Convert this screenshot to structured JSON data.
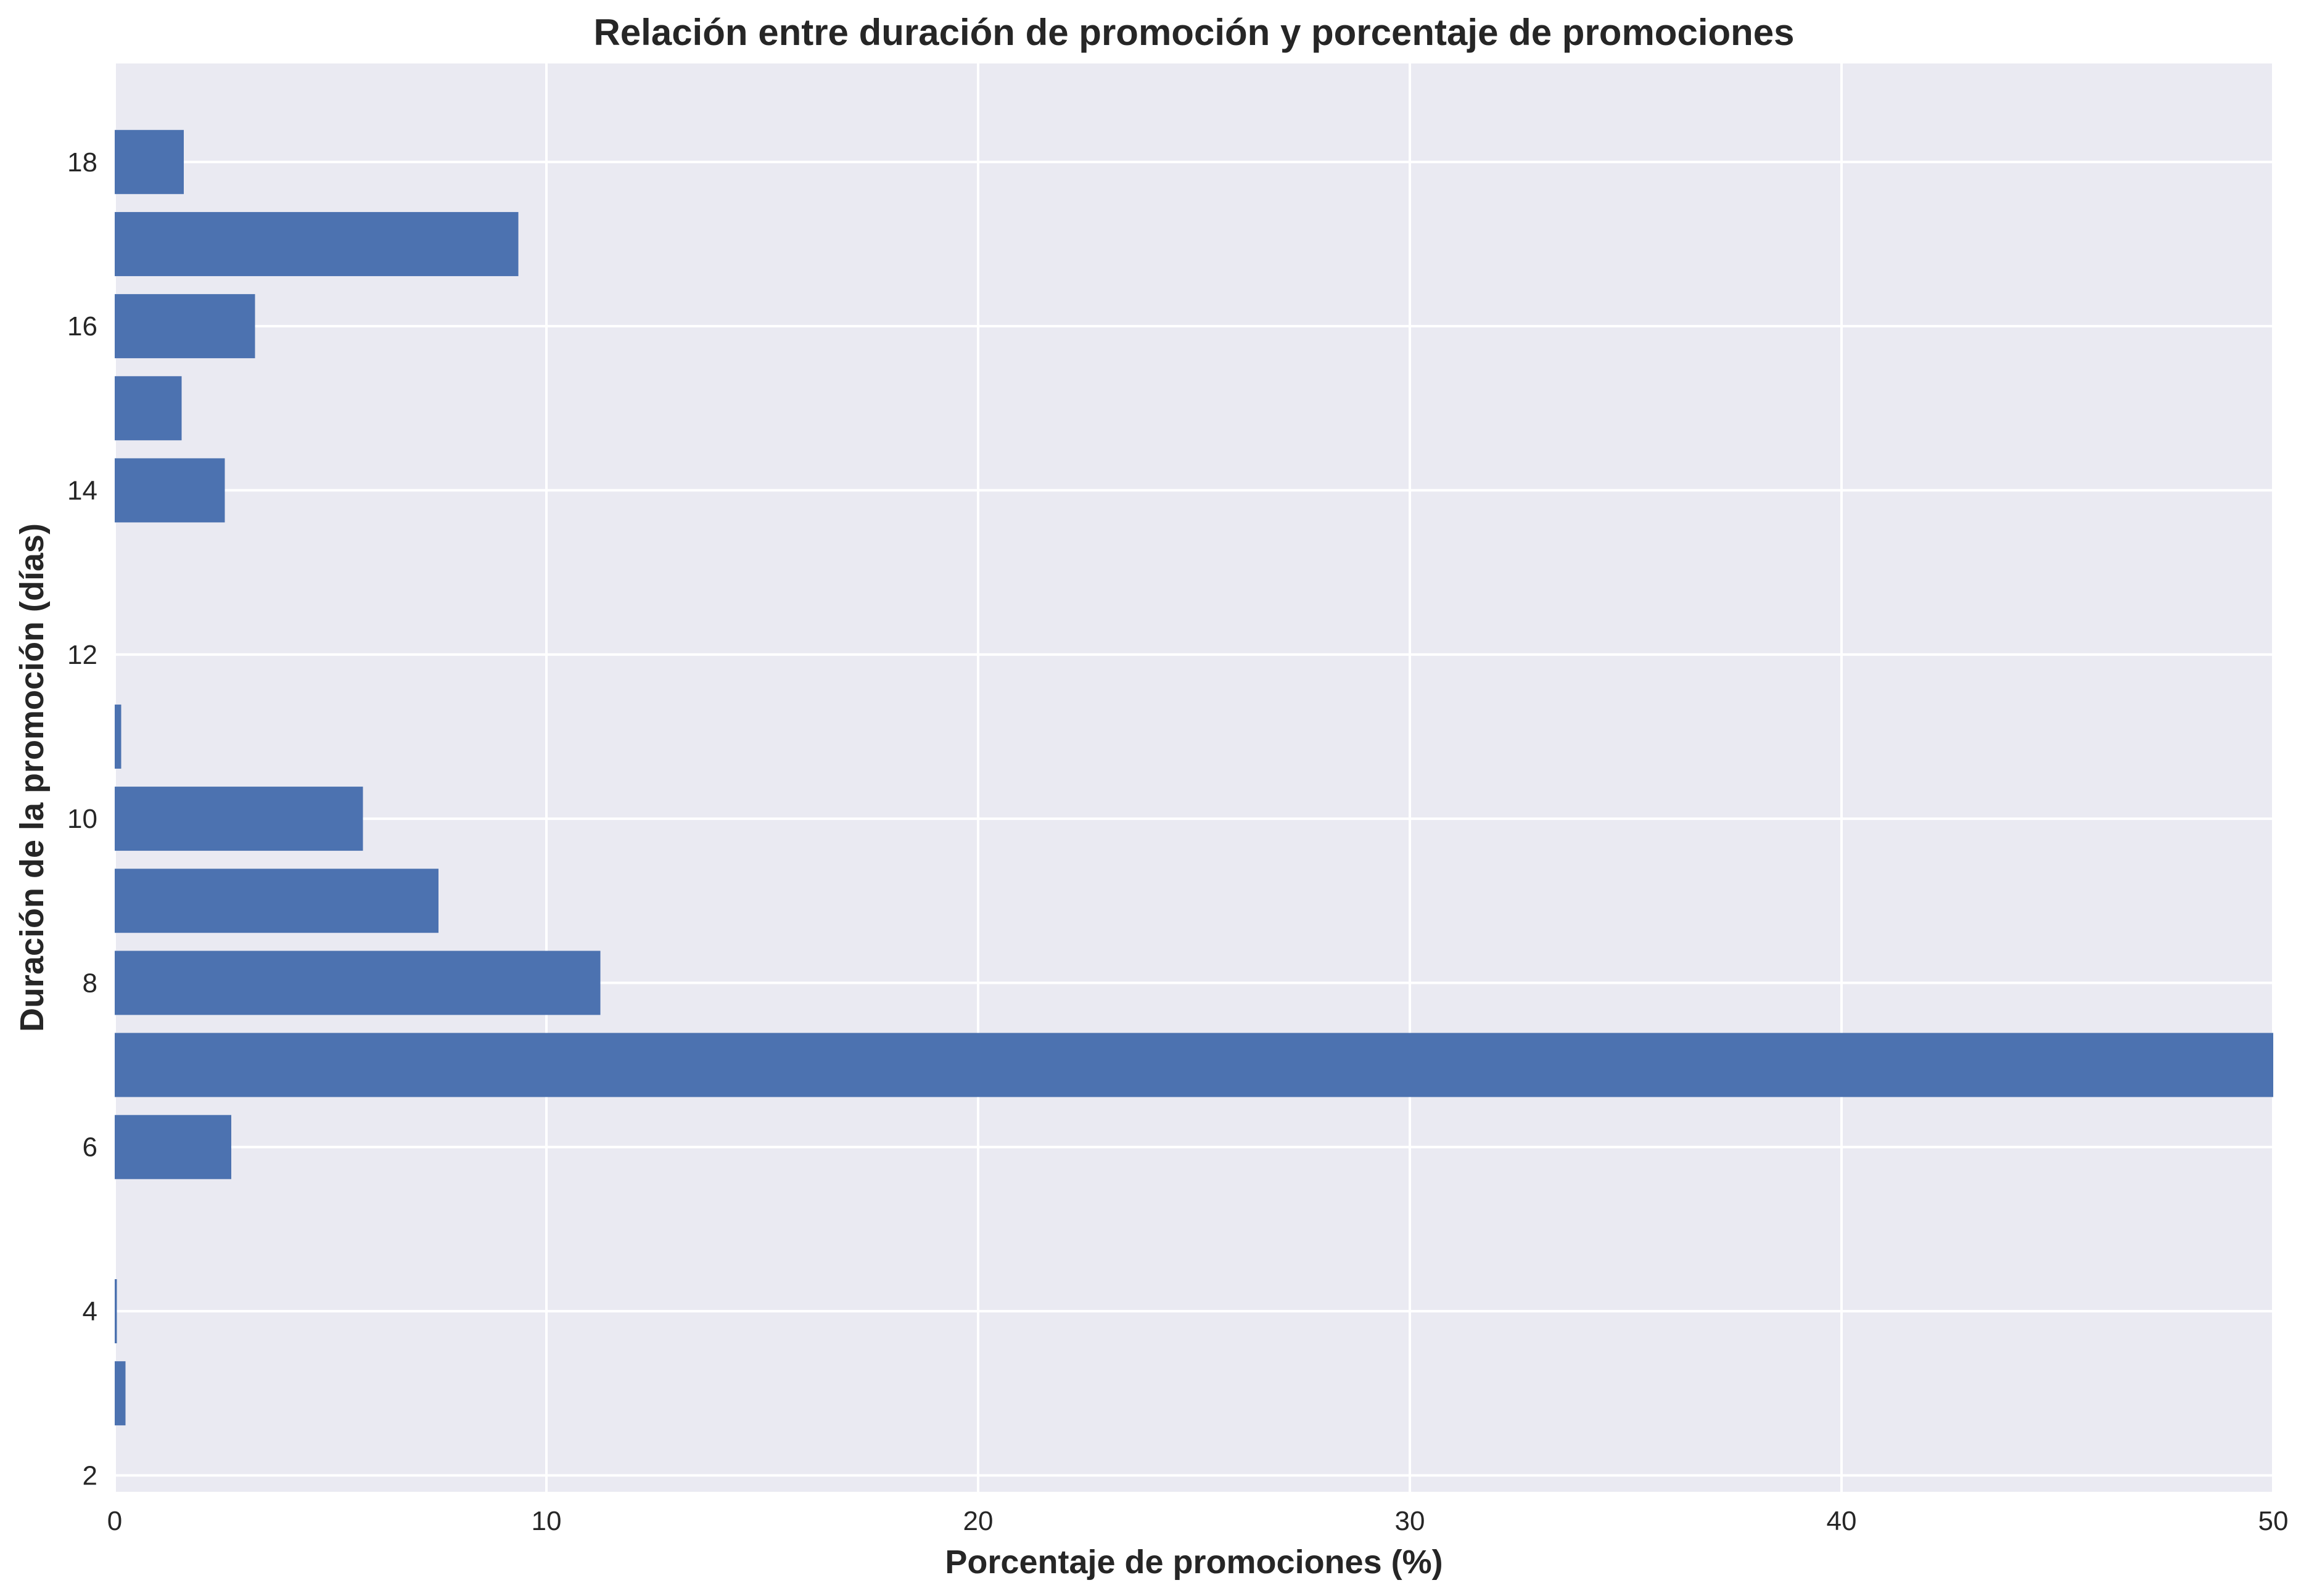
{
  "chart_data": {
    "type": "bar",
    "orientation": "horizontal",
    "title": "Relación entre duración de promoción y porcentaje de promociones",
    "xlabel": "Porcentaje de promociones (%)",
    "ylabel": "Duración de la promoción (días)",
    "xlim": [
      0,
      50
    ],
    "ylim": [
      1.8,
      19.2
    ],
    "x_ticks": [
      0,
      10,
      20,
      30,
      40,
      50
    ],
    "y_ticks": [
      2,
      4,
      6,
      8,
      10,
      12,
      14,
      16,
      18
    ],
    "grid": true,
    "categories": [
      3,
      4,
      5,
      6,
      7,
      8,
      9,
      10,
      11,
      12,
      13,
      14,
      15,
      16,
      17,
      18
    ],
    "values": [
      0.25,
      0.05,
      0,
      2.7,
      50.0,
      11.25,
      7.5,
      5.75,
      0.15,
      0,
      0,
      2.55,
      1.55,
      3.25,
      9.35,
      1.6
    ],
    "colors": {
      "bar": "#4c72b0",
      "plot_background": "#eaeaf2",
      "grid": "#ffffff",
      "text": "#262626"
    }
  }
}
